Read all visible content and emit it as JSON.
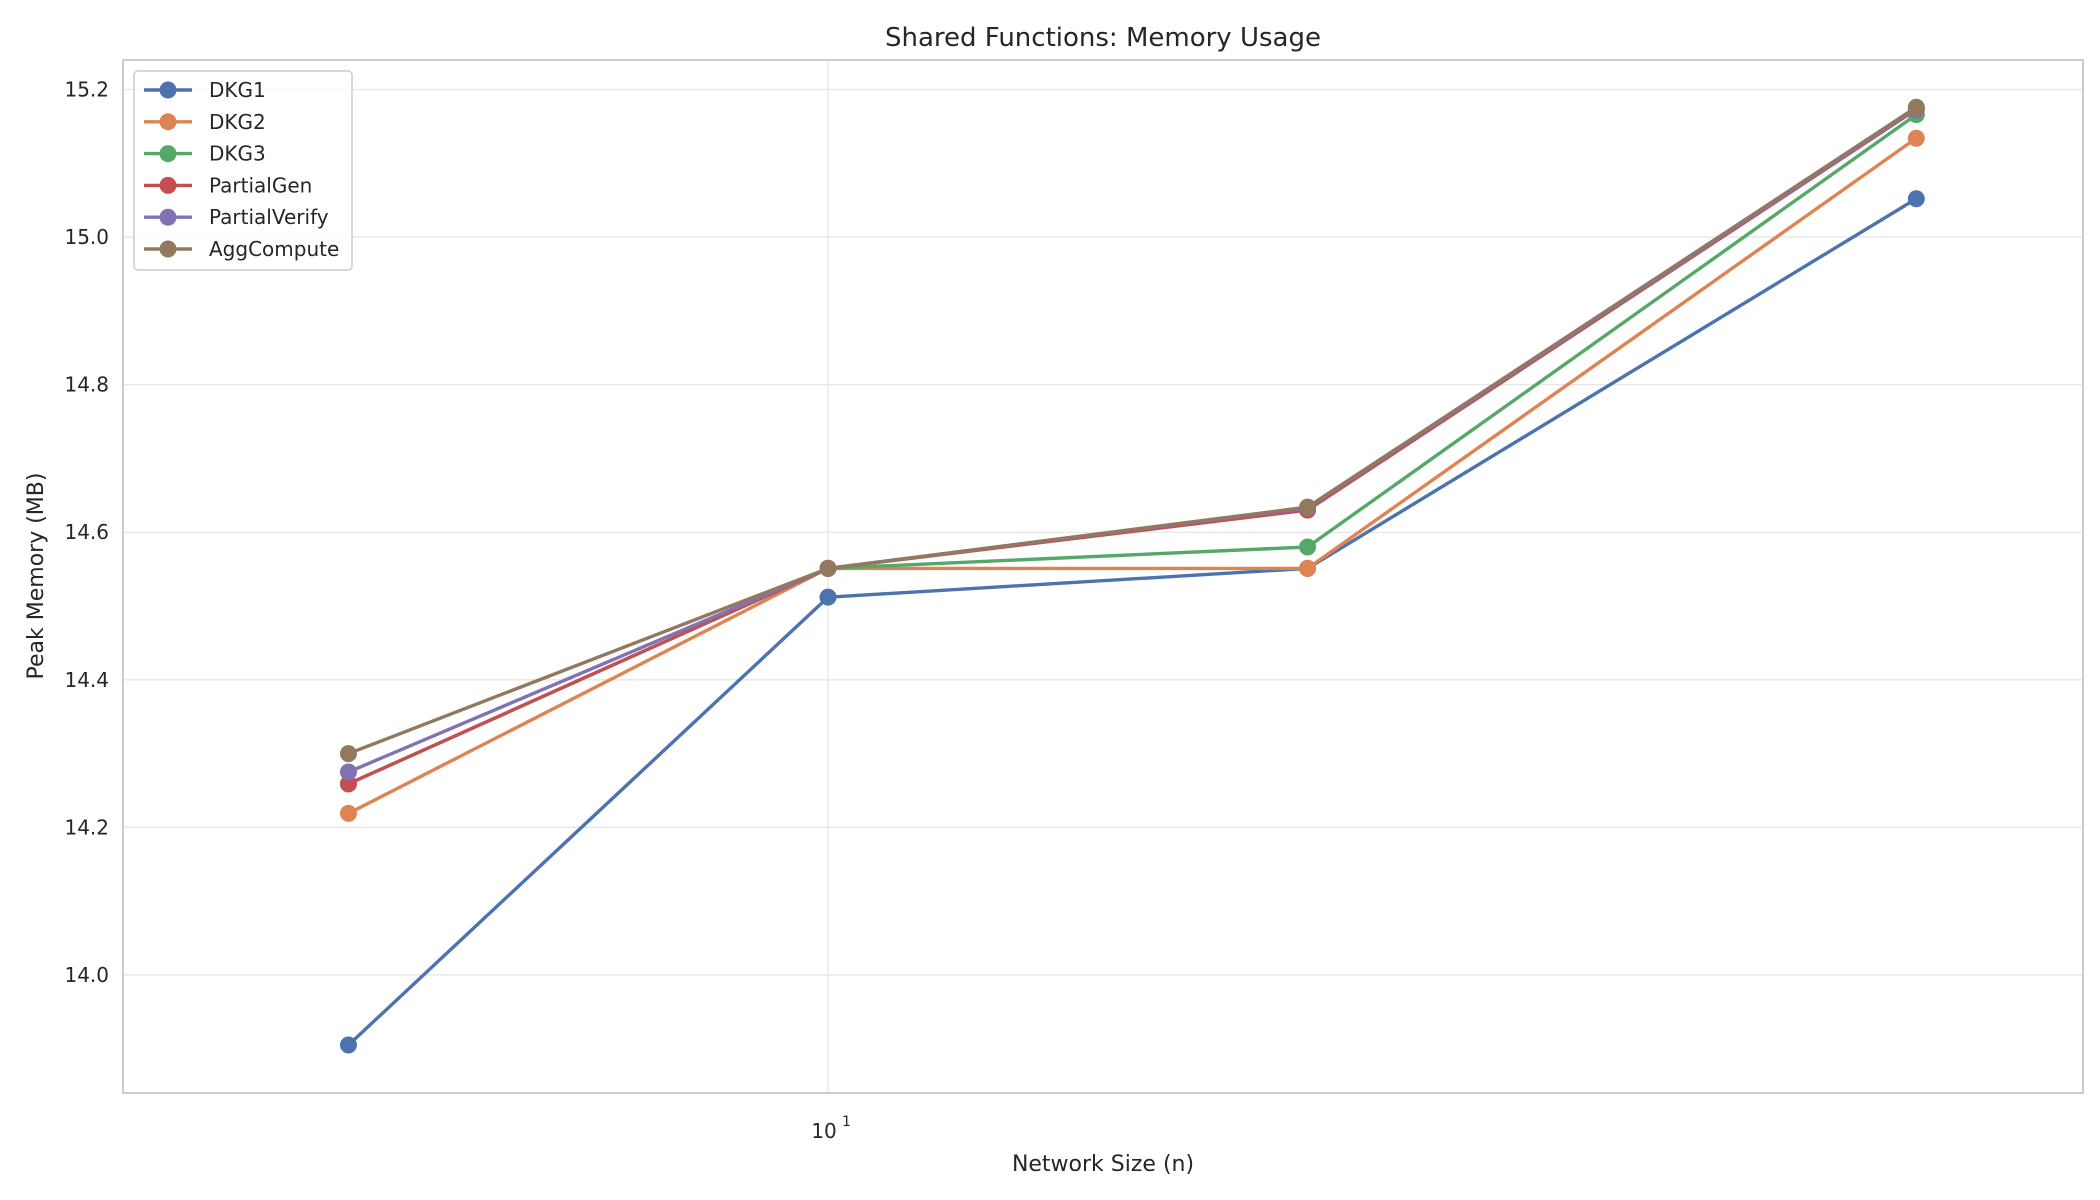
{
  "chart_data": {
    "type": "line",
    "title": "Shared Functions: Memory Usage",
    "xlabel": "Network Size (n)",
    "ylabel": "Peak Memory (MB)",
    "xscale": "log",
    "x": [
      4,
      10,
      25,
      80
    ],
    "xlim": [
      2.6,
      110
    ],
    "ylim": [
      13.84,
      15.24
    ],
    "y_ticks": [
      14.0,
      14.2,
      14.4,
      14.6,
      14.8,
      15.0,
      15.2
    ],
    "y_tick_labels": [
      "14.0",
      "14.2",
      "14.4",
      "14.6",
      "14.8",
      "15.0",
      "15.2"
    ],
    "x_ticks": [
      10
    ],
    "x_tick_labels": [
      {
        "base": "10",
        "exp": "1"
      }
    ],
    "grid": true,
    "legend_position": "top-left",
    "series": [
      {
        "name": "DKG1",
        "color": "#4c72b0",
        "values": [
          13.905,
          14.512,
          14.551,
          15.052
        ]
      },
      {
        "name": "DKG2",
        "color": "#dd8452",
        "values": [
          14.219,
          14.551,
          14.551,
          15.134
        ]
      },
      {
        "name": "DKG3",
        "color": "#55a868",
        "values": [
          14.259,
          14.551,
          14.58,
          15.166
        ]
      },
      {
        "name": "PartialGen",
        "color": "#c44e52",
        "values": [
          14.259,
          14.551,
          14.63,
          15.173
        ]
      },
      {
        "name": "PartialVerify",
        "color": "#8172b3",
        "values": [
          14.275,
          14.551,
          14.633,
          15.174
        ]
      },
      {
        "name": "AggCompute",
        "color": "#937860",
        "values": [
          14.3,
          14.551,
          14.634,
          15.176
        ]
      }
    ]
  }
}
